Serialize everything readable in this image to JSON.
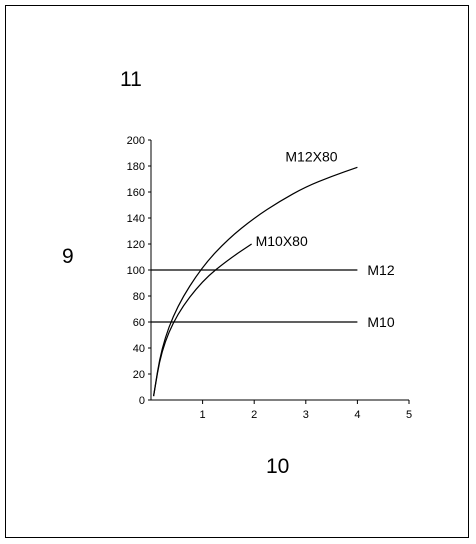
{
  "callouts": {
    "top": "11",
    "left": "9",
    "bottom": "10"
  },
  "chart_data": {
    "type": "line",
    "xlim": [
      0,
      5
    ],
    "ylim": [
      0,
      200
    ],
    "x_ticks": [
      1,
      2,
      3,
      4,
      5
    ],
    "y_ticks": [
      0,
      20,
      40,
      60,
      80,
      100,
      120,
      140,
      160,
      180,
      200
    ],
    "grid": false,
    "legend": "none (series labelled inline at line ends)",
    "series": [
      {
        "name": "M12X80",
        "kind": "curve",
        "x": [
          0.05,
          0.2,
          0.5,
          1,
          1.5,
          2,
          2.5,
          3,
          3.5,
          4
        ],
        "y": [
          3,
          40,
          72,
          103,
          124,
          140,
          153,
          164,
          172,
          179
        ]
      },
      {
        "name": "M10X80",
        "kind": "curve",
        "x": [
          0.05,
          0.2,
          0.5,
          1,
          1.5,
          1.95
        ],
        "y": [
          3,
          38,
          66,
          92,
          108,
          120
        ]
      },
      {
        "name": "M12",
        "kind": "horizontal",
        "x": [
          0,
          4
        ],
        "y": [
          100,
          100
        ]
      },
      {
        "name": "M10",
        "kind": "horizontal",
        "x": [
          0,
          4
        ],
        "y": [
          60,
          60
        ]
      }
    ]
  }
}
